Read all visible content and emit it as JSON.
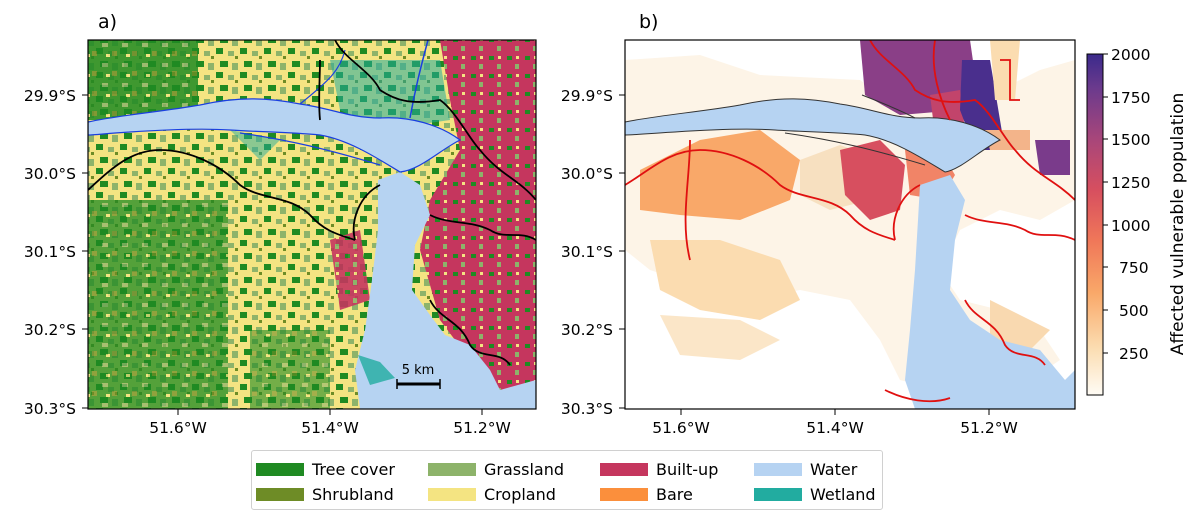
{
  "panels": [
    {
      "label": "a)",
      "x_ticks": [
        "51.6$^\\circ$W",
        "51.4$^\\circ$W",
        "51.2$^\\circ$W"
      ],
      "y_ticks": [
        "29.9$^\\circ$S",
        "30.0$^\\circ$S",
        "30.1$^\\circ$S",
        "30.2$^\\circ$S",
        "30.3$^\\circ$S"
      ],
      "scalebar_label": "5 km"
    },
    {
      "label": "b)",
      "x_ticks": [
        "51.6$^\\circ$W",
        "51.4$^\\circ$W",
        "51.2$^\\circ$W"
      ],
      "y_ticks": [
        "29.9$^\\circ$S",
        "30.0$^\\circ$S",
        "30.1$^\\circ$S",
        "30.2$^\\circ$S",
        "30.3$^\\circ$S"
      ]
    }
  ],
  "tick_text": {
    "x": [
      "51.6°W",
      "51.4°W",
      "51.2°W"
    ],
    "y": [
      "29.9°S",
      "30.0°S",
      "30.1°S",
      "30.2°S",
      "30.3°S"
    ]
  },
  "colorbar": {
    "label": "Affected vulnerable population",
    "ticks": [
      "2000",
      "1750",
      "1500",
      "1250",
      "1000",
      "750",
      "500",
      "250"
    ],
    "range": [
      0,
      2000
    ],
    "colormap": [
      "#fffcf5",
      "#fbdcb0",
      "#f9a869",
      "#f07859",
      "#d74f5f",
      "#a8467a",
      "#6b3a8d",
      "#3b2a8b"
    ]
  },
  "legend": {
    "items": [
      {
        "label": "Tree cover",
        "color": "#1f8a22"
      },
      {
        "label": "Shrubland",
        "color": "#6e8c26"
      },
      {
        "label": "Grassland",
        "color": "#8db36a"
      },
      {
        "label": "Cropland",
        "color": "#f4e482"
      },
      {
        "label": "Built-up",
        "color": "#c5365e"
      },
      {
        "label": "Bare",
        "color": "#fb8f3c"
      },
      {
        "label": "Water",
        "color": "#b6d3f2"
      },
      {
        "label": "Wetland",
        "color": "#22aca0"
      }
    ]
  },
  "colors": {
    "river_outline_a": "#1a3fe0",
    "boundary_a": "#000000",
    "boundary_b": "#e01010",
    "water": "#b6d3f2"
  }
}
